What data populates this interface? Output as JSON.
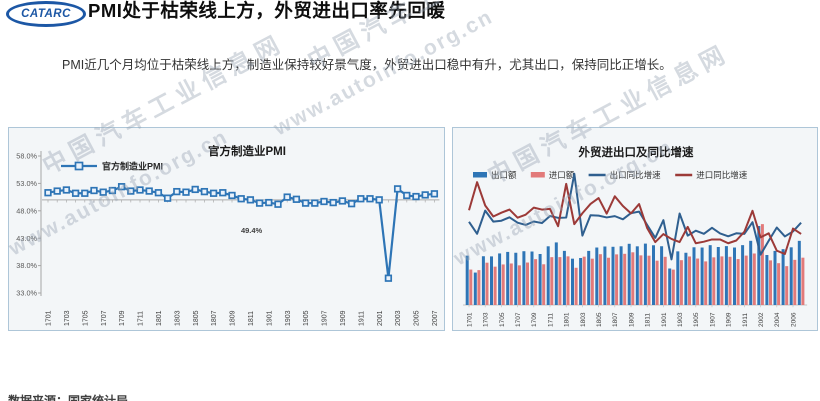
{
  "header": {
    "logo_text": "CATARC",
    "title": "PMI处于枯荣线上方，外贸进出口率先回暖"
  },
  "intro": {
    "text": "PMI近几个月均位于枯荣线上方，制造业保持较好景气度，外贸进出口稳中有升，尤其出口，保持同比正增长。"
  },
  "watermark": {
    "cn": "中国汽车工业信息网",
    "url": "www.autoinfo.org.cn"
  },
  "footer": {
    "source": "数据来源：国家统计局"
  },
  "colors": {
    "pmi_line": "#2E75B6",
    "pmi_marker_fill": "#EAF2FB",
    "export_bar": "#2E75B6",
    "import_bar": "#E27A7A",
    "export_growth_line": "#2F5F8F",
    "import_growth_line": "#9C3A38",
    "axis_text": "#595959",
    "panel_border": "#AEC6D8"
  },
  "chart_data": [
    {
      "type": "line",
      "title": "官方制造业PMI",
      "legend": [
        "官方制造业PMI"
      ],
      "x": [
        "1701",
        "1702",
        "1703",
        "1704",
        "1705",
        "1706",
        "1707",
        "1708",
        "1709",
        "1710",
        "1711",
        "1712",
        "1801",
        "1802",
        "1803",
        "1804",
        "1805",
        "1806",
        "1807",
        "1808",
        "1809",
        "1810",
        "1811",
        "1812",
        "1901",
        "1902",
        "1903",
        "1904",
        "1905",
        "1906",
        "1907",
        "1908",
        "1909",
        "1910",
        "1911",
        "1912",
        "2001",
        "2002",
        "2003",
        "2004",
        "2005",
        "2006",
        "2007"
      ],
      "x_tick_step": 2,
      "series": [
        {
          "name": "官方制造业PMI",
          "color": "#2E75B6",
          "values": [
            51.3,
            51.6,
            51.8,
            51.2,
            51.2,
            51.7,
            51.4,
            51.7,
            52.4,
            51.6,
            51.8,
            51.6,
            51.3,
            50.3,
            51.5,
            51.4,
            51.9,
            51.5,
            51.2,
            51.3,
            50.8,
            50.2,
            50.0,
            49.4,
            49.5,
            49.2,
            50.5,
            50.1,
            49.4,
            49.4,
            49.7,
            49.5,
            49.8,
            49.3,
            50.2,
            50.2,
            50.0,
            35.7,
            52.0,
            50.8,
            50.6,
            50.9,
            51.1
          ]
        }
      ],
      "ylim": [
        33,
        58
      ],
      "yticks": [
        [
          58,
          "58.0%"
        ],
        [
          53,
          "53.0%"
        ],
        [
          48,
          "48.0%"
        ],
        [
          43,
          "43.0%"
        ],
        [
          38,
          "38.0%"
        ],
        [
          33,
          "33.0%"
        ]
      ],
      "axis_cross_value": 50,
      "grid": false,
      "legend_position": "top-left",
      "annotation": {
        "text": "49.4%",
        "index": 23
      }
    },
    {
      "type": "bar",
      "title": "外贸进出口及同比增速",
      "unit_bars": "亿美元",
      "unit_lines": "%",
      "categories": [
        "1701",
        "1702",
        "1703",
        "1704",
        "1705",
        "1706",
        "1707",
        "1708",
        "1709",
        "1710",
        "1711",
        "1712",
        "1801",
        "1802",
        "1803",
        "1804",
        "1805",
        "1806",
        "1807",
        "1808",
        "1809",
        "1810",
        "1811",
        "1812",
        "1901",
        "1902",
        "1903",
        "1904",
        "1905",
        "1906",
        "1907",
        "1908",
        "1909",
        "1910",
        "1911",
        "1912",
        "2002",
        "2003",
        "2004",
        "2005",
        "2006",
        "2007"
      ],
      "x_tick_step": 2,
      "bar_series": [
        {
          "name": "出口额",
          "color": "#2E75B6",
          "values": [
            1828,
            1201,
            1806,
            1800,
            1910,
            1966,
            1935,
            1992,
            1981,
            1889,
            2174,
            2318,
            2005,
            1716,
            1741,
            2004,
            2129,
            2167,
            2156,
            2174,
            2267,
            2173,
            2274,
            2212,
            2176,
            1352,
            1987,
            1935,
            2138,
            2129,
            2216,
            2148,
            2181,
            2129,
            2217,
            2377,
            2925,
            1852,
            2003,
            2068,
            2136,
            2376
          ]
        },
        {
          "name": "进口额",
          "color": "#E27A7A",
          "values": [
            1312,
            1292,
            1567,
            1420,
            1502,
            1538,
            1469,
            1573,
            1698,
            1508,
            1772,
            1774,
            1802,
            1379,
            1791,
            1716,
            1882,
            1751,
            1875,
            1896,
            1952,
            1838,
            1827,
            1642,
            1785,
            1311,
            1660,
            1797,
            1721,
            1615,
            1765,
            1800,
            1786,
            1701,
            1830,
            1908,
            2995,
            1653,
            1549,
            1439,
            1672,
            1753
          ]
        }
      ],
      "line_series": [
        {
          "name": "出口同比增速",
          "color": "#2F5F8F",
          "values": [
            7.9,
            -1.3,
            16.4,
            8.0,
            8.7,
            11.3,
            7.2,
            5.5,
            8.1,
            6.9,
            12.3,
            10.9,
            11.1,
            44.5,
            -2.7,
            12.9,
            12.6,
            11.2,
            12.2,
            9.8,
            14.5,
            15.6,
            5.4,
            -4.4,
            9.1,
            -20.8,
            14.2,
            -2.7,
            1.1,
            -1.3,
            3.3,
            -1.0,
            -3.2,
            -0.9,
            -1.3,
            7.6,
            -17.2,
            -6.6,
            3.5,
            -3.3,
            0.5,
            7.2
          ]
        },
        {
          "name": "进口同比增速",
          "color": "#9C3A38",
          "values": [
            16.7,
            38.1,
            20.3,
            11.9,
            14.8,
            17.2,
            11.0,
            13.3,
            18.7,
            17.2,
            17.7,
            4.5,
            36.8,
            6.1,
            14.4,
            21.5,
            26.0,
            14.1,
            27.3,
            19.9,
            14.3,
            21.4,
            3.0,
            -7.6,
            -1.5,
            -5.2,
            -7.6,
            4.0,
            -8.5,
            -7.3,
            -5.6,
            -5.6,
            -8.5,
            -6.4,
            0.3,
            16.3,
            -4.0,
            -0.9,
            -14.2,
            -16.7,
            2.7,
            -1.4
          ]
        }
      ],
      "grid": false,
      "legend_position": "top"
    }
  ]
}
